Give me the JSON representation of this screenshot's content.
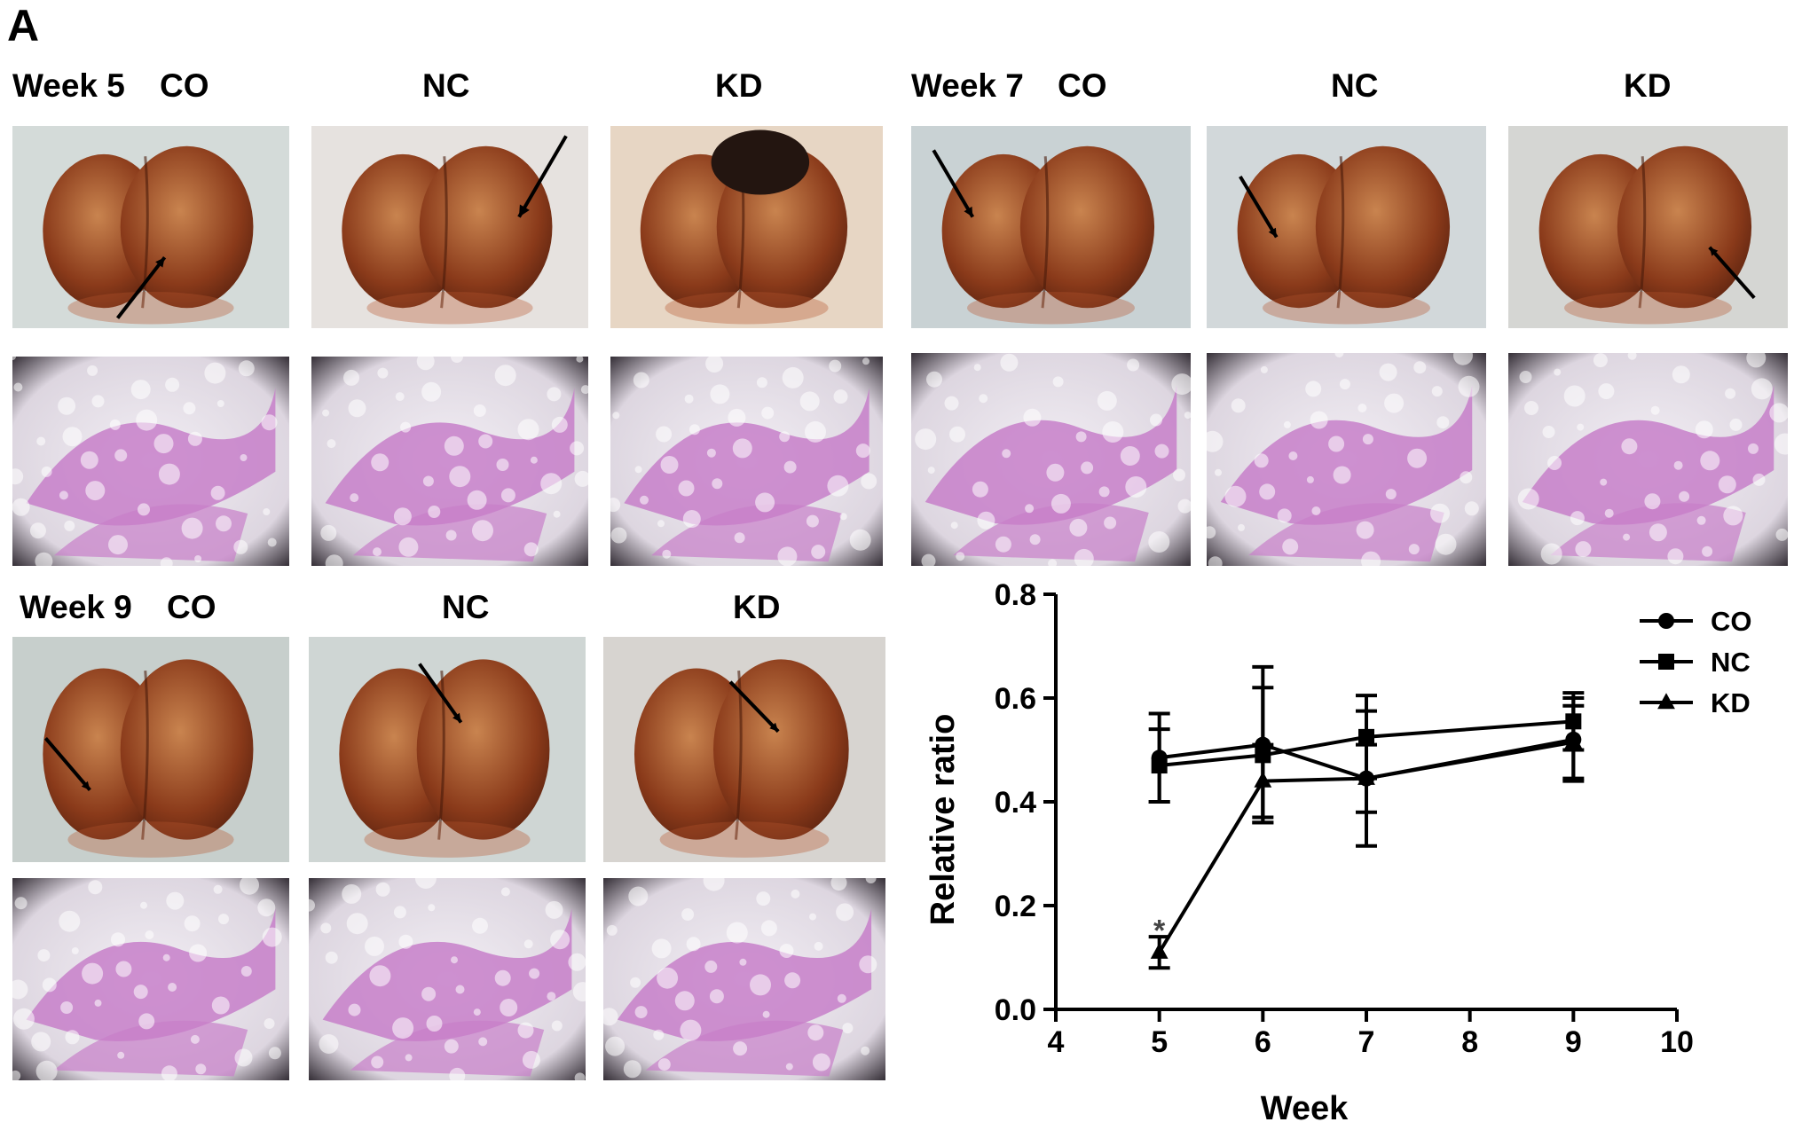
{
  "figure": {
    "panel_letter": "A",
    "rows": [
      {
        "week_label": "Week 5",
        "groups": [
          "CO",
          "NC",
          "KD"
        ]
      },
      {
        "week_label": "Week 7",
        "groups": [
          "CO",
          "NC",
          "KD"
        ]
      },
      {
        "week_label": "Week 9",
        "groups": [
          "CO",
          "NC",
          "KD"
        ]
      }
    ]
  },
  "colors": {
    "tissue_dark": "#8a3a1a",
    "tissue_light": "#c9844f",
    "photo_bg": "#cfd6d4",
    "stain_pink": "#c77fc9",
    "stain_bg": "#f2eef4",
    "axis": "#000000"
  },
  "chart_data": {
    "type": "line",
    "xlabel": "Week",
    "ylabel": "Relative ratio",
    "xlim": [
      4,
      10
    ],
    "ylim": [
      0.0,
      0.8
    ],
    "xticks": [
      "4",
      "5",
      "6",
      "7",
      "8",
      "9",
      "10"
    ],
    "yticks": [
      "0.0",
      "0.2",
      "0.4",
      "0.6",
      "0.8"
    ],
    "legend_position": "top-right",
    "annotations": [
      {
        "text": "*",
        "x": 5,
        "y": 0.17
      }
    ],
    "x": [
      5,
      6,
      7,
      9
    ],
    "series": [
      {
        "name": "CO",
        "marker": "circle",
        "values": [
          0.485,
          0.51,
          0.445,
          0.52
        ],
        "err": [
          0.085,
          0.15,
          0.13,
          0.08
        ]
      },
      {
        "name": "NC",
        "marker": "square",
        "values": [
          0.47,
          0.49,
          0.525,
          0.555
        ],
        "err": [
          0.07,
          0.13,
          0.08,
          0.055
        ]
      },
      {
        "name": "KD",
        "marker": "triangle",
        "values": [
          0.11,
          0.44,
          0.445,
          0.515
        ],
        "err": [
          0.03,
          0.07,
          0.065,
          0.07
        ]
      }
    ]
  }
}
